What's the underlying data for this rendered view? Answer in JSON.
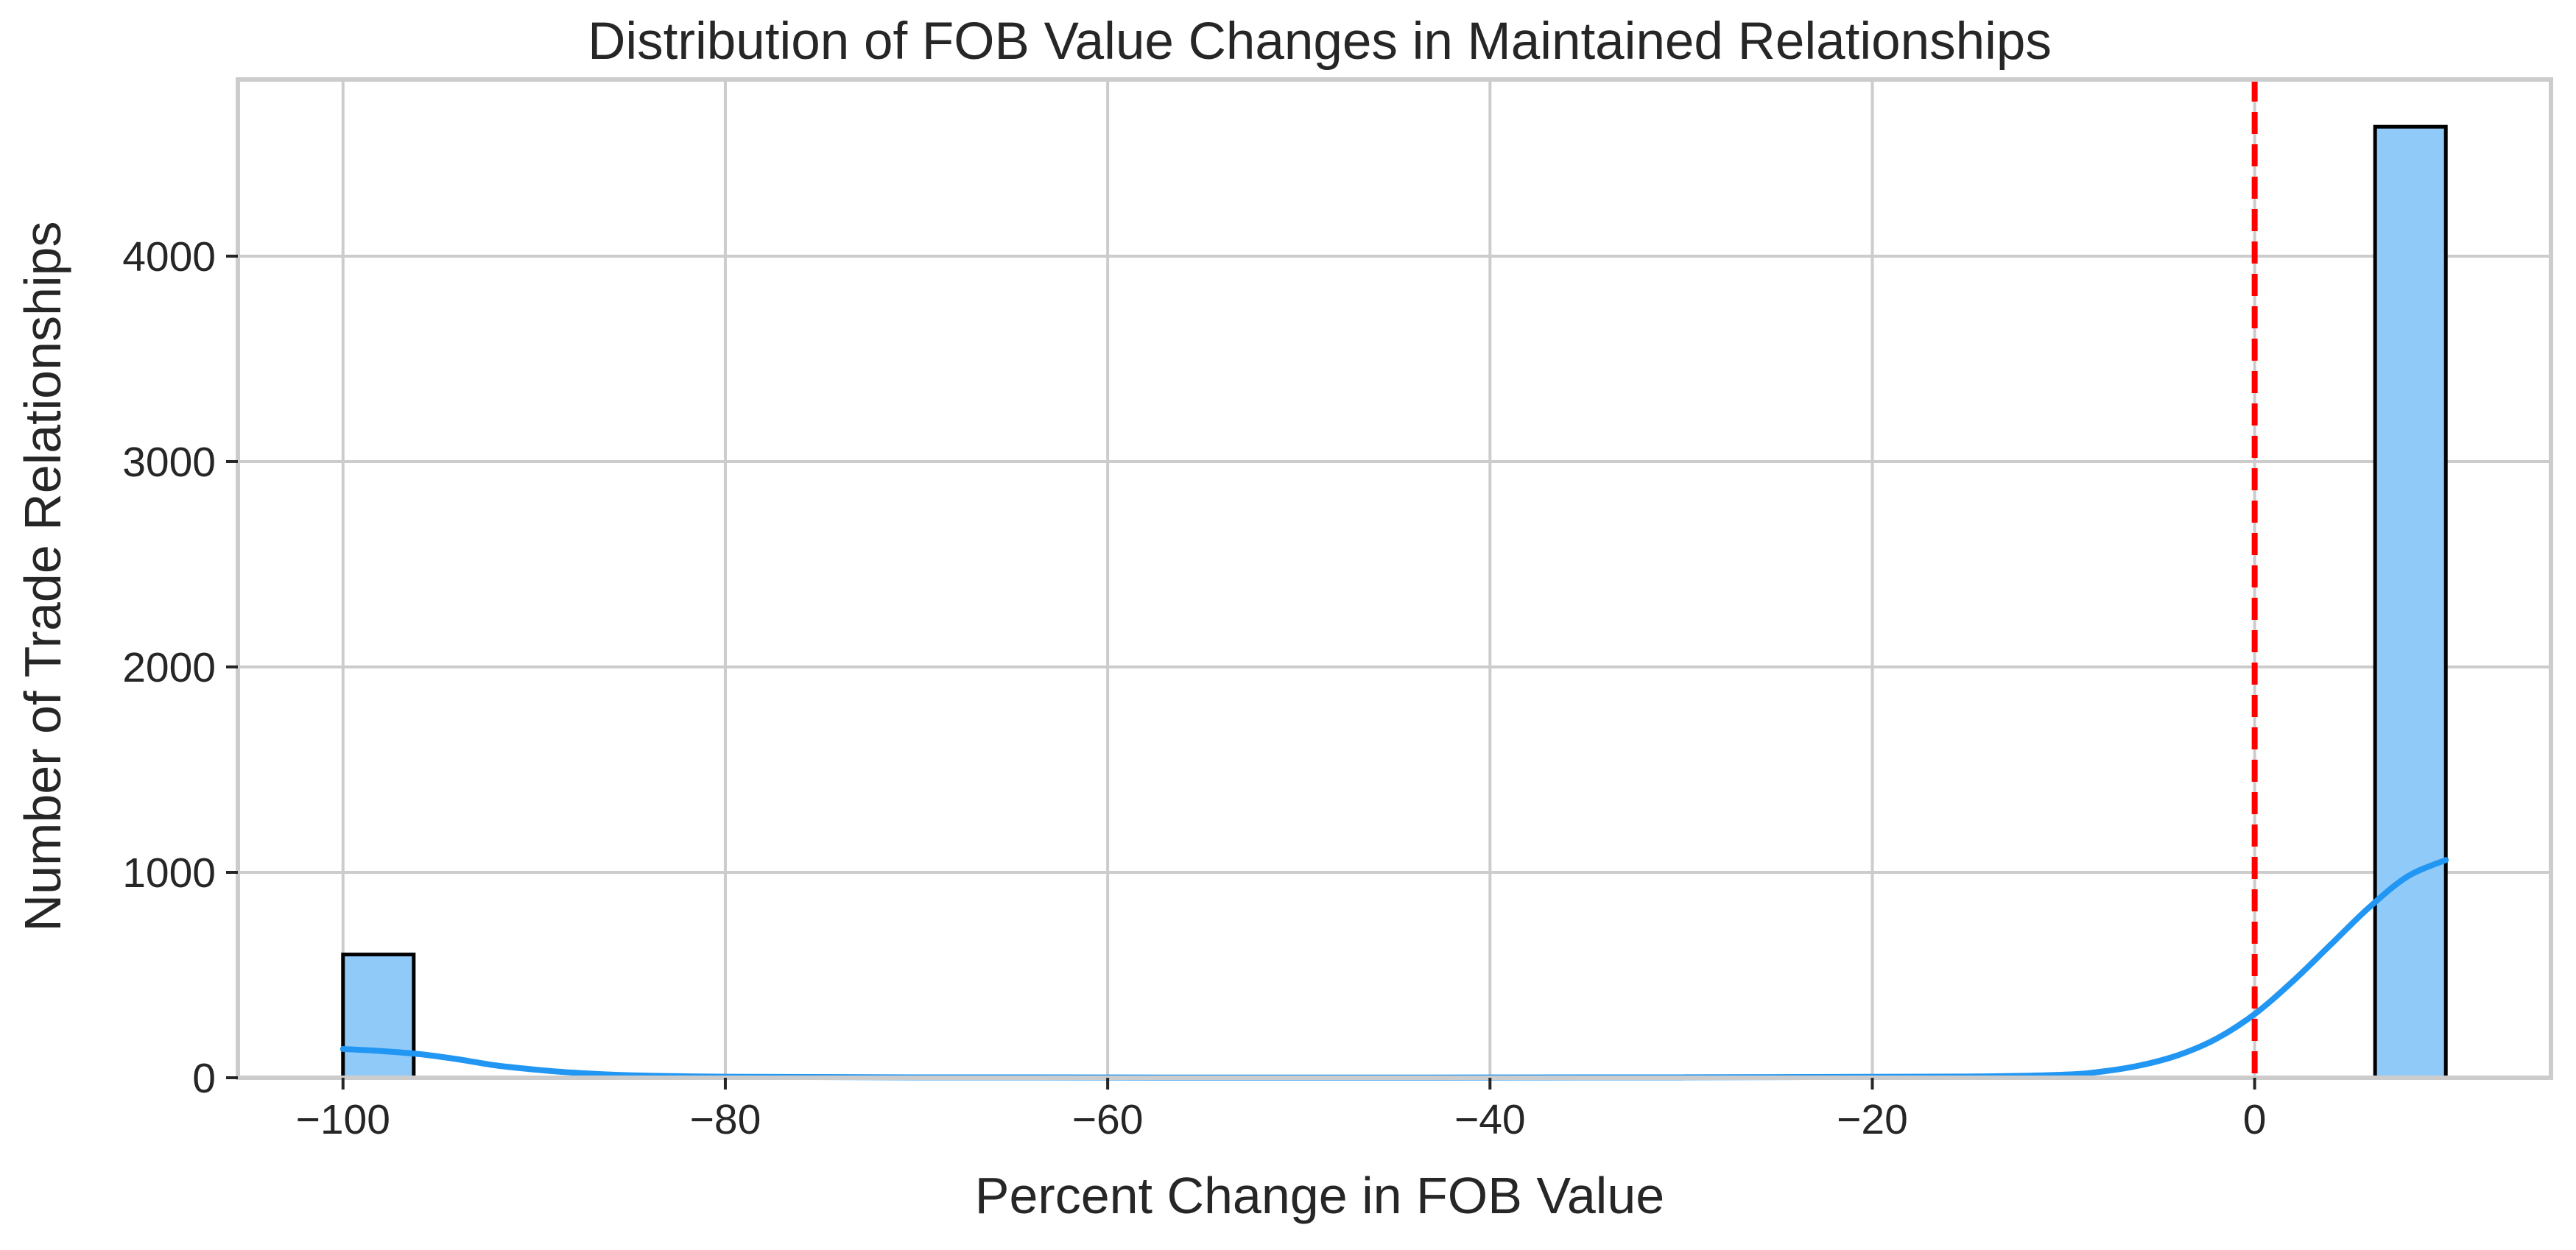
{
  "chart_data": {
    "type": "bar",
    "title": "Distribution of FOB Value Changes in Maintained Relationships",
    "xlabel": "Percent Change in FOB Value",
    "ylabel": "Number of Trade Relationships",
    "xlim": [
      -105.5,
      15.5
    ],
    "ylim": [
      0,
      4860
    ],
    "xticks": [
      -100,
      -80,
      -60,
      -40,
      -20,
      0
    ],
    "xtick_labels": [
      "−100",
      "−80",
      "−60",
      "−40",
      "−20",
      "0"
    ],
    "yticks": [
      0,
      1000,
      2000,
      3000,
      4000
    ],
    "ytick_labels": [
      "0",
      "1000",
      "2000",
      "3000",
      "4000"
    ],
    "grid": true,
    "bars": [
      {
        "x0": -100,
        "x1": -96.3,
        "count": 600
      },
      {
        "x0": 6.3,
        "x1": 10,
        "count": 4630
      }
    ],
    "kde": {
      "x": [
        -100,
        -98,
        -96,
        -94,
        -92,
        -90,
        -88,
        -85,
        -80,
        -70,
        -50,
        -30,
        -15,
        -10,
        -8,
        -6,
        -4,
        -2,
        0,
        2,
        4,
        6,
        8,
        10
      ],
      "y": [
        140,
        130,
        115,
        90,
        60,
        40,
        25,
        12,
        5,
        2,
        1,
        2,
        6,
        15,
        30,
        60,
        110,
        190,
        310,
        470,
        650,
        830,
        980,
        1060
      ]
    },
    "reference_line": {
      "x": 0,
      "style": "dashed",
      "color": "#ff0000"
    },
    "colors": {
      "bar_fill": "#90caf9",
      "bar_edge": "#000000",
      "kde_line": "#2196f3",
      "grid": "#cccccc",
      "text": "#262626"
    }
  }
}
